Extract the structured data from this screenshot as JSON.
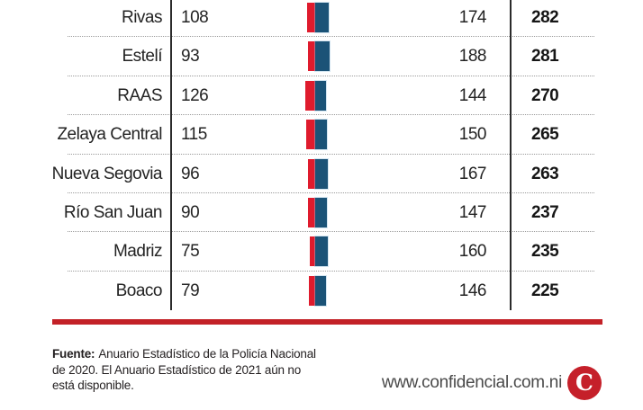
{
  "chart_data": {
    "type": "bar",
    "variant": "diverging-stacked-bars-in-table",
    "legend": "none visible (cropped infographic)",
    "columns": [
      "department",
      "value_red",
      "value_blue",
      "total"
    ],
    "rows": [
      {
        "label": "Rivas",
        "value1": 108,
        "value2": 174,
        "total": 282
      },
      {
        "label": "Estelí",
        "value1": 93,
        "value2": 188,
        "total": 281
      },
      {
        "label": "RAAS",
        "value1": 126,
        "value2": 144,
        "total": 270
      },
      {
        "label": "Zelaya Central",
        "value1": 115,
        "value2": 150,
        "total": 265
      },
      {
        "label": "Nueva Segovia",
        "value1": 96,
        "value2": 167,
        "total": 263
      },
      {
        "label": "Río San Juan",
        "value1": 90,
        "value2": 147,
        "total": 237
      },
      {
        "label": "Madriz",
        "value1": 75,
        "value2": 160,
        "total": 235
      },
      {
        "label": "Boaco",
        "value1": 79,
        "value2": 146,
        "total": 225
      }
    ],
    "colors": {
      "value1": "#df1b2d",
      "value2": "#1b5377",
      "rule": "#c32127"
    }
  },
  "footer": {
    "source_label": "Fuente:",
    "source_text": "Anuario Estadístico de la Policía Nacional de 2020. El Anuario Estadístico de 2021 aún no está disponible.",
    "website": "www.confidencial.com.ni",
    "logo_letter": "C"
  }
}
